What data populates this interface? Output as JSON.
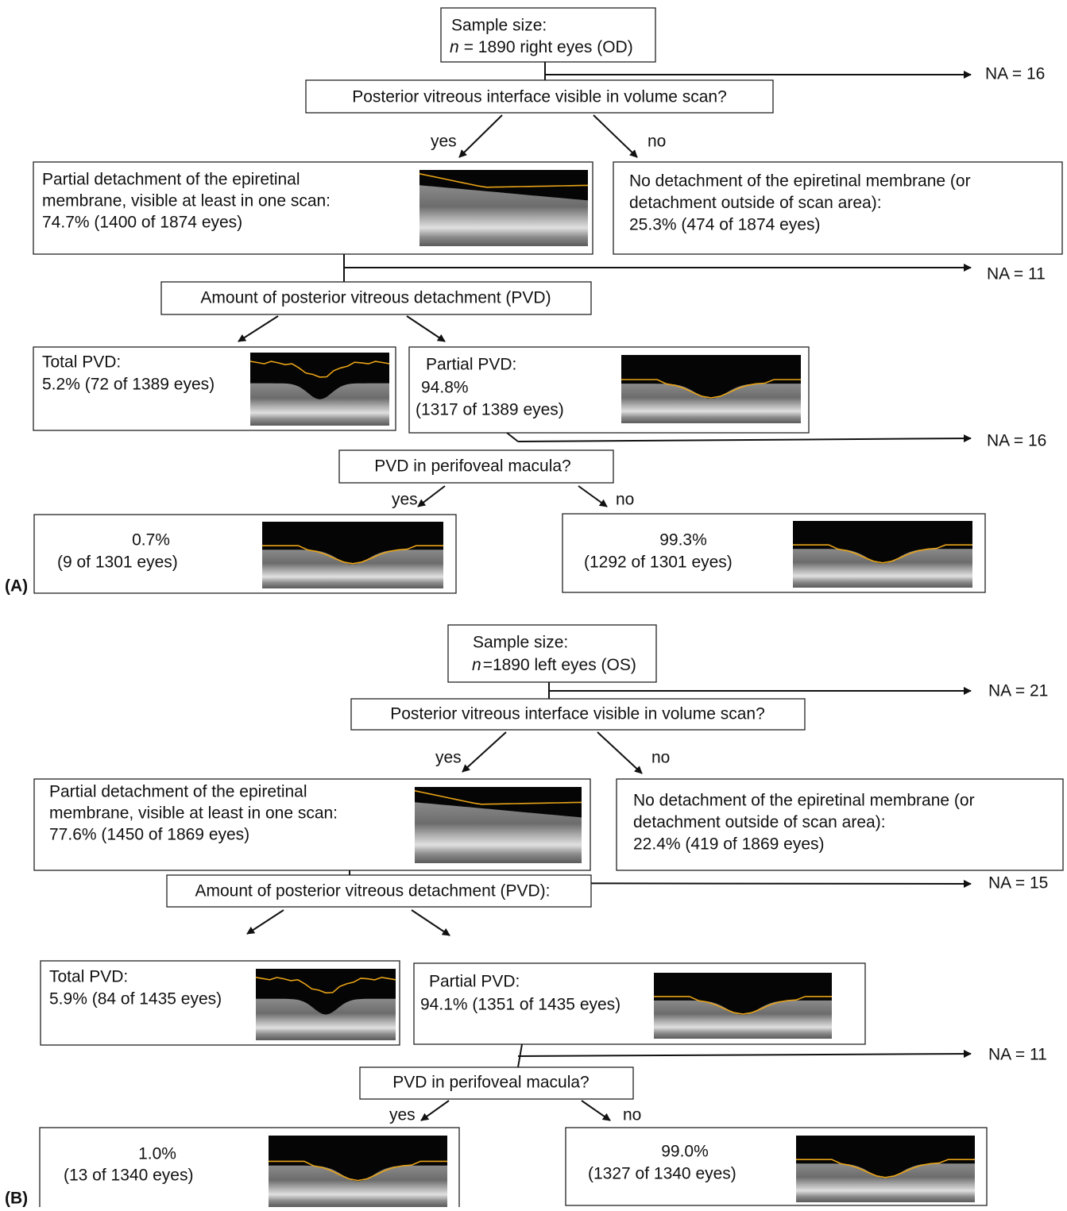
{
  "panel_a": {
    "label": "(A)",
    "sample": {
      "title": "Sample size:",
      "n": "n",
      "count": "= 1890 right eyes (OD)"
    },
    "na": [
      "NA = 16",
      "NA = 11",
      "NA = 16"
    ],
    "question_visible": "Posterior vitreous interface visible in volume scan?",
    "yes_1": "yes",
    "no_1": "no",
    "detached": [
      "Partial detachment of the epiretinal",
      "membrane, visible at least in one scan:",
      "74.7% (1400 of 1874 eyes)"
    ],
    "not_detached": [
      "No detachment of the epiretinal membrane (or",
      "detachment outside of scan area):",
      "25.3% (474 of 1874 eyes)"
    ],
    "question_amount": "Amount of posterior vitreous detachment (PVD)",
    "total_pvd": [
      "Total PVD:",
      "5.2% (72 of 1389 eyes)"
    ],
    "partial_pvd": [
      "Partial PVD:",
      "94.8%",
      "(1317 of 1389 eyes)"
    ],
    "question_macula": "PVD in perifoveal macula?",
    "yes_2": "yes",
    "no_2": "no",
    "macula_yes": [
      "0.7%",
      "(9 of 1301 eyes)"
    ],
    "macula_no": [
      "99.3%",
      "(1292 of 1301 eyes)"
    ]
  },
  "panel_b": {
    "label": "(B)",
    "sample": {
      "title": "Sample size:",
      "n": "n",
      "count": "=1890 left eyes (OS)"
    },
    "na": [
      "NA = 21",
      "NA = 15",
      "NA = 11"
    ],
    "question_visible": "Posterior vitreous interface visible in volume scan?",
    "yes_1": "yes",
    "no_1": "no",
    "detached": [
      "Partial detachment of the epiretinal",
      "membrane, visible at least in one scan:",
      "77.6% (1450 of 1869 eyes)"
    ],
    "not_detached": [
      "No detachment of the epiretinal membrane (or",
      "detachment outside of scan area):",
      "22.4% (419 of 1869 eyes)"
    ],
    "question_amount": "Amount of posterior vitreous detachment (PVD):",
    "total_pvd": [
      "Total PVD:",
      "5.9% (84 of 1435 eyes)"
    ],
    "partial_pvd": [
      "Partial PVD:",
      "94.1% (1351 of 1435 eyes)"
    ],
    "question_macula": "PVD in perifoveal macula?",
    "yes_2": "yes",
    "no_2": "no",
    "macula_yes": [
      "1.0%",
      "(13 of 1340 eyes)"
    ],
    "macula_no": [
      "99.0%",
      "(1327 of 1340 eyes)"
    ]
  }
}
